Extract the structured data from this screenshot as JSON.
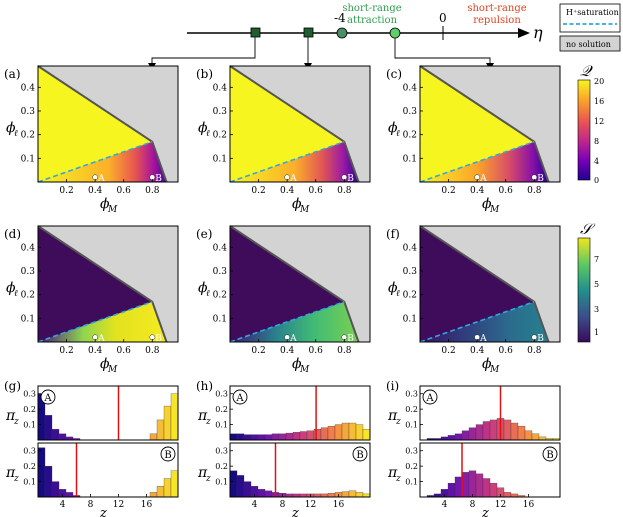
{
  "eta_axis": {
    "symbol": "η",
    "tick_minus4": "-4",
    "tick_0": "0",
    "attraction_label": [
      "short-range",
      "attraction"
    ],
    "repulsion_label": [
      "short-range",
      "repulsion"
    ],
    "attraction_color": "#2e9e4f",
    "repulsion_color": "#e0401f"
  },
  "legend": {
    "saturation_label": "H⁺saturation",
    "nosolution_label": "no solution",
    "saturation_color": "#2fa8e0",
    "nosolution_color": "#d3d3d3"
  },
  "phase_panels": {
    "xlabel": "ϕ",
    "xlabel_sub": "M",
    "ylabel": "ϕ",
    "ylabel_sub": "ℓ",
    "xticks": [
      "0.2",
      "0.4",
      "0.6",
      "0.8"
    ],
    "yticks": [
      "0.1",
      "0.2",
      "0.3",
      "0.4"
    ],
    "point_A": "A",
    "point_B": "B",
    "top_row_letters": [
      "(a)",
      "(b)",
      "(c)"
    ],
    "mid_row_letters": [
      "(d)",
      "(e)",
      "(f)"
    ]
  },
  "colorbar_Q": {
    "label": "𝒬",
    "ticks": [
      "20",
      "16",
      "12",
      "8",
      "4",
      "0"
    ]
  },
  "colorbar_S": {
    "label": "𝒮",
    "ticks": [
      "7",
      "5",
      "3",
      "1"
    ]
  },
  "histograms": {
    "letters": [
      "(g)",
      "(h)",
      "(i)"
    ],
    "ylabel": "π",
    "ylabel_sub": "z",
    "xlabel": "z",
    "xticks": [
      "4",
      "8",
      "12",
      "16"
    ],
    "yticks": [
      "0.1",
      "0.2",
      "0.3"
    ],
    "mark_A": "A",
    "mark_B": "B"
  },
  "chart_data": [
    {
      "type": "bar",
      "panel": "(g) A",
      "x": [
        1,
        2,
        3,
        4,
        5,
        6,
        7,
        8,
        9,
        10,
        11,
        12,
        13,
        14,
        15,
        16,
        17,
        18,
        19,
        20
      ],
      "values": [
        0.3,
        0.16,
        0.07,
        0.04,
        0.02,
        0.01,
        0,
        0,
        0,
        0,
        0,
        0,
        0,
        0,
        0,
        0,
        0.04,
        0.13,
        0.22,
        0.3
      ],
      "mean_line": 12,
      "ylim": [
        0,
        0.35
      ]
    },
    {
      "type": "bar",
      "panel": "(g) B",
      "x": [
        1,
        2,
        3,
        4,
        5,
        6,
        7,
        8,
        9,
        10,
        11,
        12,
        13,
        14,
        15,
        16,
        17,
        18,
        19,
        20
      ],
      "values": [
        0.32,
        0.2,
        0.1,
        0.05,
        0.03,
        0.01,
        0,
        0,
        0,
        0,
        0,
        0,
        0,
        0,
        0,
        0,
        0.03,
        0.07,
        0.12,
        0.17
      ],
      "mean_line": 6,
      "ylim": [
        0,
        0.35
      ]
    },
    {
      "type": "bar",
      "panel": "(h) A",
      "x": [
        1,
        2,
        3,
        4,
        5,
        6,
        7,
        8,
        9,
        10,
        11,
        12,
        13,
        14,
        15,
        16,
        17,
        18,
        19,
        20
      ],
      "values": [
        0.04,
        0.04,
        0.035,
        0.035,
        0.035,
        0.035,
        0.04,
        0.04,
        0.045,
        0.05,
        0.055,
        0.06,
        0.07,
        0.08,
        0.09,
        0.1,
        0.11,
        0.11,
        0.1,
        0.07
      ],
      "mean_line": 12.8,
      "ylim": [
        0,
        0.35
      ]
    },
    {
      "type": "bar",
      "panel": "(h) B",
      "x": [
        1,
        2,
        3,
        4,
        5,
        6,
        7,
        8,
        9,
        10,
        11,
        12,
        13,
        14,
        15,
        16,
        17,
        18,
        19,
        20
      ],
      "values": [
        0.17,
        0.14,
        0.1,
        0.07,
        0.05,
        0.04,
        0.03,
        0.025,
        0.02,
        0.02,
        0.02,
        0.02,
        0.02,
        0.02,
        0.025,
        0.03,
        0.035,
        0.04,
        0.03,
        0.02
      ],
      "mean_line": 7,
      "ylim": [
        0,
        0.35
      ]
    },
    {
      "type": "bar",
      "panel": "(i) A",
      "x": [
        1,
        2,
        3,
        4,
        5,
        6,
        7,
        8,
        9,
        10,
        11,
        12,
        13,
        14,
        15,
        16,
        17,
        18,
        19,
        20
      ],
      "values": [
        0.0,
        0.01,
        0.01,
        0.02,
        0.03,
        0.04,
        0.06,
        0.08,
        0.1,
        0.12,
        0.13,
        0.14,
        0.13,
        0.11,
        0.09,
        0.06,
        0.04,
        0.02,
        0.01,
        0.01
      ],
      "mean_line": 12,
      "ylim": [
        0,
        0.35
      ]
    },
    {
      "type": "bar",
      "panel": "(i) B",
      "x": [
        1,
        2,
        3,
        4,
        5,
        6,
        7,
        8,
        9,
        10,
        11,
        12,
        13,
        14,
        15,
        16,
        17,
        18,
        19,
        20
      ],
      "values": [
        0.0,
        0.01,
        0.02,
        0.05,
        0.09,
        0.13,
        0.16,
        0.17,
        0.15,
        0.12,
        0.09,
        0.06,
        0.03,
        0.02,
        0.01,
        0,
        0,
        0,
        0,
        0
      ],
      "mean_line": 6.5,
      "ylim": [
        0,
        0.35
      ]
    }
  ]
}
